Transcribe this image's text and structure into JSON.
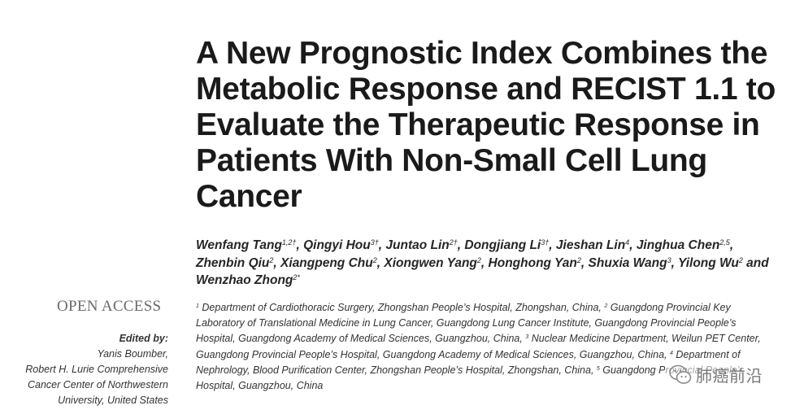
{
  "paper": {
    "title": "A New Prognostic Index Combines the Metabolic Response and RECIST 1.1 to Evaluate the Therapeutic Response in Patients With Non-Small Cell Lung Cancer",
    "authors": [
      {
        "name": "Wenfang Tang",
        "sup": "1,2†",
        "sep": ", "
      },
      {
        "name": "Qingyi Hou",
        "sup": "3†",
        "sep": ", "
      },
      {
        "name": "Juntao Lin",
        "sup": "2†",
        "sep": ", "
      },
      {
        "name": "Dongjiang Li",
        "sup": "3†",
        "sep": ", "
      },
      {
        "name": "Jieshan Lin",
        "sup": "4",
        "sep": ", "
      },
      {
        "name": "Jinghua Chen",
        "sup": "2,5",
        "sep": ", "
      },
      {
        "name": "Zhenbin Qiu",
        "sup": "2",
        "sep": ", "
      },
      {
        "name": "Xiangpeng Chu",
        "sup": "2",
        "sep": ", "
      },
      {
        "name": "Xiongwen Yang",
        "sup": "2",
        "sep": ", "
      },
      {
        "name": "Honghong Yan",
        "sup": "2",
        "sep": ", "
      },
      {
        "name": "Shuxia Wang",
        "sup": "3",
        "sep": ", "
      },
      {
        "name": "Yilong Wu",
        "sup": "2",
        "sep": " and "
      },
      {
        "name": "Wenzhao Zhong",
        "sup": "2*",
        "sep": ""
      }
    ],
    "open_access": "OPEN ACCESS",
    "edited_by": {
      "label": "Edited by:",
      "name": "Yanis Boumber,",
      "affiliation_line1": "Robert H. Lurie Comprehensive",
      "affiliation_line2": "Cancer Center of Northwestern",
      "affiliation_line3": "University, United States"
    },
    "affiliations": [
      {
        "num": "1",
        "text": "Department of Cardiothoracic Surgery, Zhongshan People’s Hospital, Zhongshan, China, "
      },
      {
        "num": "2",
        "text": "Guangdong Provincial Key Laboratory of Translational Medicine in Lung Cancer, Guangdong Lung Cancer Institute, Guangdong Provincial People’s Hospital, Guangdong Academy of Medical Sciences, Guangzhou, China, "
      },
      {
        "num": "3",
        "text": "Nuclear Medicine Department, Weilun PET Center, Guangdong Provincial People’s Hospital, Guangdong Academy of Medical Sciences, Guangzhou, China, "
      },
      {
        "num": "4",
        "text": "Department of Nephrology, Blood Purification Center, Zhongshan People’s Hospital, Zhongshan, China, "
      },
      {
        "num": "5",
        "text": "Guangdong Provincial People’s Hospital, Guangzhou, China"
      }
    ]
  },
  "watermark": {
    "text": "肺癌前沿",
    "icon": "wechat-icon"
  }
}
